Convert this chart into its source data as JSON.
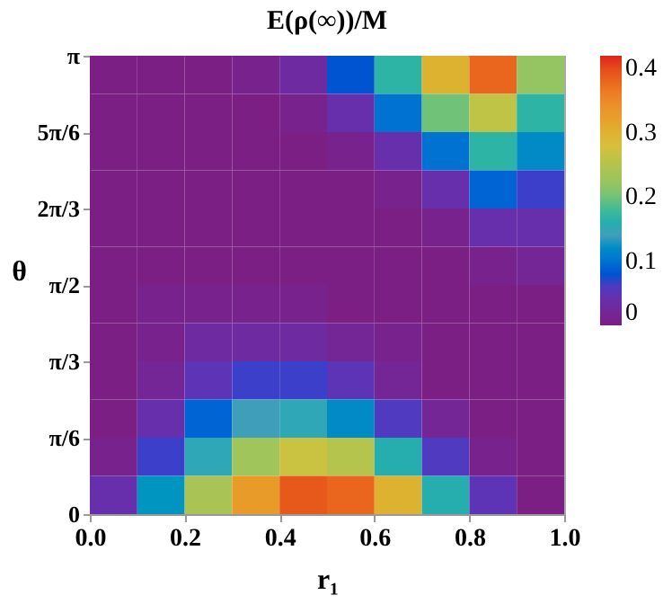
{
  "chart_data": {
    "type": "heatmap",
    "title": "E(ρ(∞))/M",
    "xlabel": "r₁",
    "ylabel": "θ",
    "x": [
      0.05,
      0.15,
      0.25,
      0.35,
      0.45,
      0.55,
      0.65,
      0.75,
      0.85,
      0.95
    ],
    "cells": [
      [
        0,
        0,
        0,
        0.01,
        0.03,
        0.08,
        0.17,
        0.3,
        0.38,
        0.22
      ],
      [
        0,
        0,
        0,
        0,
        0.01,
        0.04,
        0.1,
        0.2,
        0.26,
        0.17
      ],
      [
        0,
        0,
        0,
        0,
        0,
        0.01,
        0.04,
        0.1,
        0.17,
        0.12
      ],
      [
        0,
        0,
        0,
        0,
        0,
        0,
        0.01,
        0.04,
        0.09,
        0.07
      ],
      [
        0,
        0,
        0,
        0,
        0,
        0,
        0,
        0.01,
        0.04,
        0.04
      ],
      [
        0,
        0,
        0,
        0,
        0,
        0,
        0,
        0,
        0.01,
        0.02
      ],
      [
        0,
        0.01,
        0.01,
        0.01,
        0.01,
        0,
        0,
        0,
        0,
        0
      ],
      [
        0,
        0.01,
        0.03,
        0.03,
        0.03,
        0.02,
        0.01,
        0,
        0,
        0
      ],
      [
        0,
        0.02,
        0.05,
        0.07,
        0.07,
        0.05,
        0.02,
        0,
        0,
        0
      ],
      [
        0,
        0.04,
        0.09,
        0.14,
        0.15,
        0.12,
        0.06,
        0.02,
        0,
        0
      ],
      [
        0.01,
        0.07,
        0.15,
        0.23,
        0.27,
        0.25,
        0.16,
        0.06,
        0.01,
        0
      ],
      [
        0.04,
        0.13,
        0.24,
        0.33,
        0.39,
        0.38,
        0.3,
        0.16,
        0.05,
        0
      ]
    ],
    "xlim": [
      0,
      1
    ],
    "xticks": [
      {
        "value": 0,
        "label": "0.0"
      },
      0.2,
      0.4,
      0.6,
      0.8,
      {
        "value": 1,
        "label": "1.0"
      }
    ],
    "ylim": [
      0,
      3.1416
    ],
    "yticks": [
      0,
      {
        "value": 0.5236,
        "label": "π/6"
      },
      {
        "value": 1.0472,
        "label": "π/3"
      },
      {
        "value": 1.5708,
        "label": "π/2"
      },
      {
        "value": 2.0944,
        "label": "2π/3"
      },
      {
        "value": 2.618,
        "label": "5π/6"
      },
      {
        "value": 3.1416,
        "label": "π"
      }
    ],
    "clim": [
      0,
      0.42
    ],
    "cticks": [
      0,
      0.1,
      0.2,
      0.3,
      0.4
    ]
  }
}
